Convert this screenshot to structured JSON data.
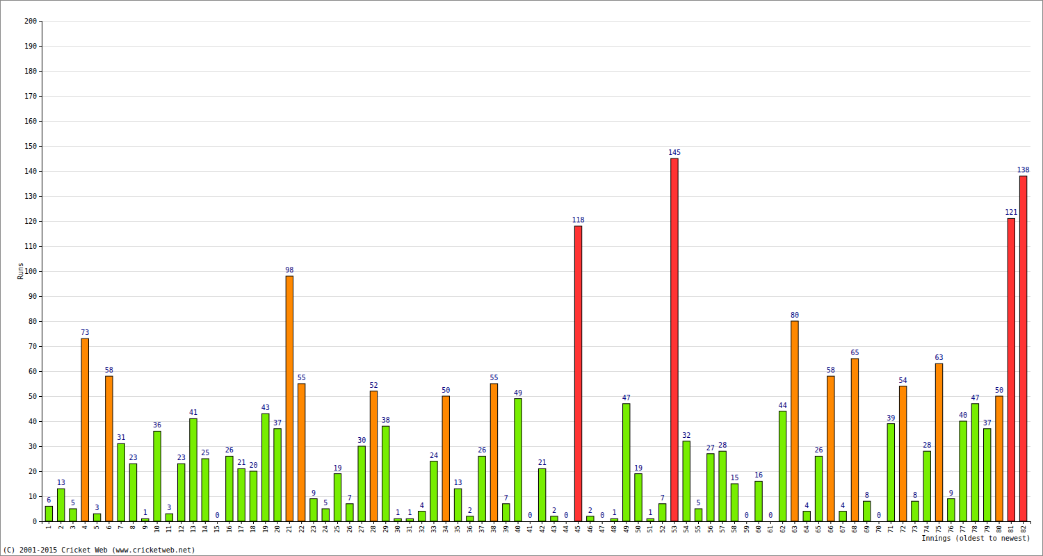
{
  "chart_data": {
    "type": "bar",
    "y_label": "Runs",
    "x_label": "Innings (oldest to newest)",
    "annotations": [
      "(C) 2001-2015 Cricket Web (www.cricketweb.net)"
    ],
    "categories": [
      "1",
      "2",
      "3",
      "4",
      "5",
      "6",
      "7",
      "8",
      "9",
      "10",
      "11",
      "12",
      "13",
      "14",
      "15",
      "16",
      "17",
      "18",
      "19",
      "20",
      "21",
      "22",
      "23",
      "24",
      "25",
      "26",
      "27",
      "28",
      "29",
      "30",
      "31",
      "32",
      "33",
      "34",
      "35",
      "36",
      "37",
      "38",
      "39",
      "40",
      "41",
      "42",
      "43",
      "44",
      "45",
      "46",
      "47",
      "48",
      "49",
      "50",
      "51",
      "52",
      "53",
      "54",
      "55",
      "56",
      "57",
      "58",
      "59",
      "60",
      "61",
      "62",
      "63",
      "64",
      "65",
      "66",
      "67",
      "68",
      "69",
      "70",
      "71",
      "72",
      "73",
      "74",
      "75",
      "76",
      "77",
      "78",
      "79",
      "80",
      "81",
      "82"
    ],
    "values": [
      6,
      13,
      5,
      73,
      3,
      58,
      31,
      23,
      1,
      36,
      3,
      23,
      41,
      25,
      0,
      26,
      21,
      20,
      43,
      37,
      98,
      55,
      9,
      5,
      19,
      7,
      30,
      52,
      38,
      1,
      1,
      4,
      24,
      50,
      13,
      2,
      26,
      55,
      7,
      49,
      0,
      21,
      2,
      0,
      118,
      2,
      0,
      1,
      47,
      19,
      1,
      7,
      145,
      32,
      5,
      27,
      28,
      15,
      0,
      16,
      0,
      44,
      80,
      4,
      26,
      58,
      4,
      65,
      8,
      0,
      39,
      54,
      8,
      28,
      63,
      9,
      40,
      47,
      37,
      50,
      121,
      138
    ],
    "colors": [
      "#77ee00",
      "#77ee00",
      "#77ee00",
      "#ff8800",
      "#77ee00",
      "#ff8800",
      "#77ee00",
      "#77ee00",
      "#77ee00",
      "#77ee00",
      "#77ee00",
      "#77ee00",
      "#77ee00",
      "#77ee00",
      "#77ee00",
      "#77ee00",
      "#77ee00",
      "#77ee00",
      "#77ee00",
      "#77ee00",
      "#ff8800",
      "#ff8800",
      "#77ee00",
      "#77ee00",
      "#77ee00",
      "#77ee00",
      "#77ee00",
      "#ff8800",
      "#77ee00",
      "#77ee00",
      "#77ee00",
      "#77ee00",
      "#77ee00",
      "#ff8800",
      "#77ee00",
      "#77ee00",
      "#77ee00",
      "#ff8800",
      "#77ee00",
      "#77ee00",
      "#77ee00",
      "#77ee00",
      "#77ee00",
      "#77ee00",
      "#ff3333",
      "#77ee00",
      "#77ee00",
      "#77ee00",
      "#77ee00",
      "#77ee00",
      "#77ee00",
      "#77ee00",
      "#ff3333",
      "#77ee00",
      "#77ee00",
      "#77ee00",
      "#77ee00",
      "#77ee00",
      "#77ee00",
      "#77ee00",
      "#77ee00",
      "#77ee00",
      "#ff8800",
      "#77ee00",
      "#77ee00",
      "#ff8800",
      "#77ee00",
      "#ff8800",
      "#77ee00",
      "#77ee00",
      "#77ee00",
      "#ff8800",
      "#77ee00",
      "#77ee00",
      "#ff8800",
      "#77ee00",
      "#77ee00",
      "#77ee00",
      "#77ee00",
      "#ff8800",
      "#ff3333",
      "#ff3333"
    ],
    "ylim": [
      0,
      200
    ],
    "yticks": [
      0,
      10,
      20,
      30,
      40,
      50,
      60,
      70,
      80,
      90,
      100,
      110,
      120,
      130,
      140,
      150,
      160,
      170,
      180,
      190,
      200
    ],
    "grid": true,
    "data_labels": true
  }
}
